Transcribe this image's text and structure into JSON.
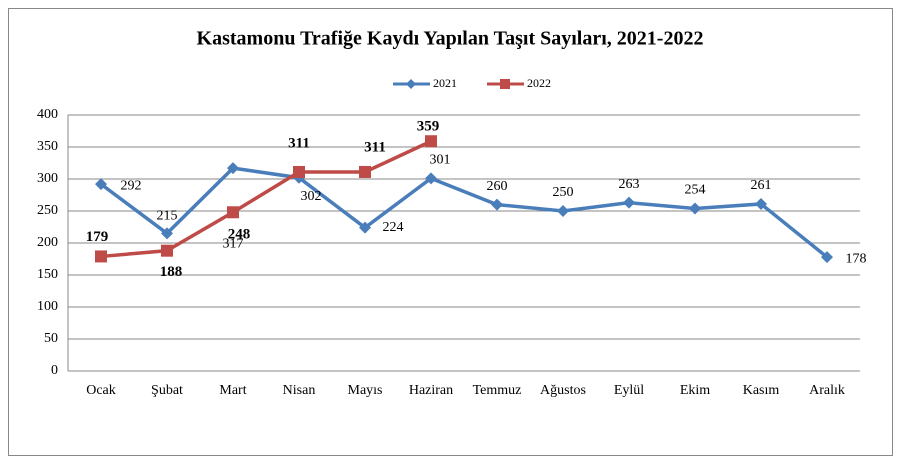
{
  "chart_data": {
    "type": "line",
    "title": "Kastamonu Trafiğe Kaydı Yapılan Taşıt Sayıları, 2021-2022",
    "categories": [
      "Ocak",
      "Şubat",
      "Mart",
      "Nisan",
      "Mayıs",
      "Haziran",
      "Temmuz",
      "Ağustos",
      "Eylül",
      "Ekim",
      "Kasım",
      "Aralık"
    ],
    "series": [
      {
        "name": "2021",
        "color": "#4a7ebb",
        "marker": "diamond",
        "values": [
          292,
          215,
          317,
          302,
          224,
          301,
          260,
          250,
          263,
          254,
          261,
          178
        ]
      },
      {
        "name": "2022",
        "color": "#be4b48",
        "marker": "square",
        "values": [
          179,
          188,
          248,
          311,
          311,
          359,
          null,
          null,
          null,
          null,
          null,
          null
        ]
      }
    ],
    "ylim": [
      0,
      400
    ],
    "yticks": [
      0,
      50,
      100,
      150,
      200,
      250,
      300,
      350,
      400
    ],
    "grid": true,
    "legend": "top"
  }
}
